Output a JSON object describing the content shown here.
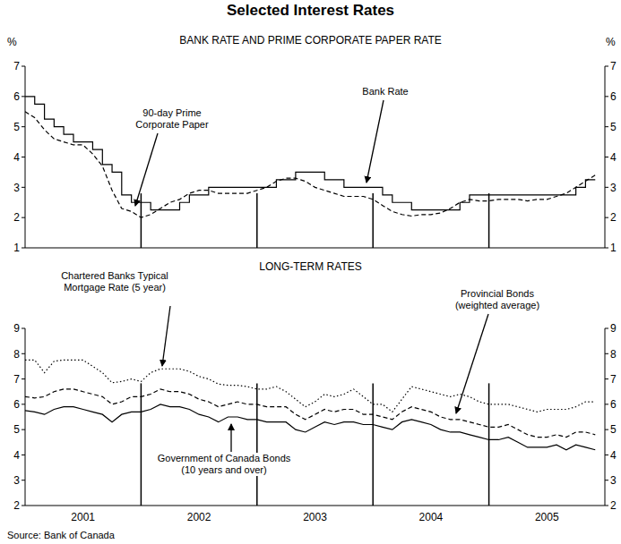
{
  "title": "Selected Interest Rates",
  "source": "Source: Bank of Canada",
  "chart_data": [
    {
      "type": "line",
      "title": "BANK RATE AND PRIME CORPORATE PAPER RATE",
      "ylabel": "%",
      "x": [
        2001,
        2001.083,
        2001.167,
        2001.25,
        2001.333,
        2001.417,
        2001.5,
        2001.583,
        2001.667,
        2001.75,
        2001.833,
        2001.917,
        2002,
        2002.083,
        2002.167,
        2002.25,
        2002.333,
        2002.417,
        2002.5,
        2002.583,
        2002.667,
        2002.75,
        2002.833,
        2002.917,
        2003,
        2003.083,
        2003.167,
        2003.25,
        2003.333,
        2003.417,
        2003.5,
        2003.583,
        2003.667,
        2003.75,
        2003.833,
        2003.917,
        2004,
        2004.083,
        2004.167,
        2004.25,
        2004.333,
        2004.417,
        2004.5,
        2004.583,
        2004.667,
        2004.75,
        2004.833,
        2004.917,
        2005,
        2005.083,
        2005.167,
        2005.25,
        2005.333,
        2005.417,
        2005.5,
        2005.583,
        2005.667,
        2005.75,
        2005.833,
        2005.917
      ],
      "xlim": [
        2001,
        2006
      ],
      "ylim": [
        1,
        7
      ],
      "yticks": [
        1,
        2,
        3,
        4,
        5,
        6,
        7
      ],
      "grid": false,
      "tick_labels": "y",
      "series": [
        {
          "name": "Bank Rate",
          "type": "step",
          "line_style": "solid",
          "color": "#000000",
          "values": [
            6,
            5.75,
            5.25,
            5,
            4.75,
            4.5,
            4.5,
            4.25,
            3.75,
            3.5,
            2.75,
            2.5,
            2.5,
            2.25,
            2.25,
            2.25,
            2.5,
            2.75,
            2.75,
            3,
            3,
            3,
            3,
            3,
            3,
            3,
            3.25,
            3.25,
            3.5,
            3.5,
            3.5,
            3.25,
            3.25,
            3,
            3,
            3,
            3,
            2.75,
            2.5,
            2.5,
            2.25,
            2.25,
            2.25,
            2.25,
            2.25,
            2.5,
            2.75,
            2.75,
            2.75,
            2.75,
            2.75,
            2.75,
            2.75,
            2.75,
            2.75,
            2.75,
            2.75,
            3,
            3.25,
            3.25
          ]
        },
        {
          "name": "90-day Prime Corporate Paper",
          "type": "line",
          "line_style": "dashed",
          "color": "#000000",
          "values": [
            5.5,
            5.3,
            4.9,
            4.6,
            4.5,
            4.4,
            4.4,
            4.1,
            3.7,
            2.9,
            2.3,
            2.2,
            2,
            2.1,
            2.3,
            2.5,
            2.6,
            2.8,
            2.9,
            2.9,
            2.8,
            2.8,
            2.8,
            2.8,
            2.9,
            3,
            3.2,
            3.3,
            3.3,
            3.2,
            3,
            2.9,
            2.8,
            2.7,
            2.7,
            2.7,
            2.6,
            2.4,
            2.2,
            2.1,
            2.05,
            2.1,
            2.1,
            2.15,
            2.3,
            2.5,
            2.6,
            2.55,
            2.55,
            2.6,
            2.6,
            2.6,
            2.55,
            2.6,
            2.6,
            2.7,
            2.8,
            3,
            3.2,
            3.4
          ]
        }
      ]
    },
    {
      "type": "line",
      "title": "LONG-TERM RATES",
      "x": [
        2001,
        2001.083,
        2001.167,
        2001.25,
        2001.333,
        2001.417,
        2001.5,
        2001.583,
        2001.667,
        2001.75,
        2001.833,
        2001.917,
        2002,
        2002.083,
        2002.167,
        2002.25,
        2002.333,
        2002.417,
        2002.5,
        2002.583,
        2002.667,
        2002.75,
        2002.833,
        2002.917,
        2003,
        2003.083,
        2003.167,
        2003.25,
        2003.333,
        2003.417,
        2003.5,
        2003.583,
        2003.667,
        2003.75,
        2003.833,
        2003.917,
        2004,
        2004.083,
        2004.167,
        2004.25,
        2004.333,
        2004.417,
        2004.5,
        2004.583,
        2004.667,
        2004.75,
        2004.833,
        2004.917,
        2005,
        2005.083,
        2005.167,
        2005.25,
        2005.333,
        2005.417,
        2005.5,
        2005.583,
        2005.667,
        2005.75,
        2005.833,
        2005.917
      ],
      "xlim": [
        2001,
        2006
      ],
      "xticks": [
        {
          "value": 2001.5,
          "label": "2001"
        },
        {
          "value": 2002.5,
          "label": "2002"
        },
        {
          "value": 2003.5,
          "label": "2003"
        },
        {
          "value": 2004.5,
          "label": "2004"
        },
        {
          "value": 2005.5,
          "label": "2005"
        }
      ],
      "ylim": [
        2,
        9
      ],
      "yticks": [
        2,
        3,
        4,
        5,
        6,
        7,
        8,
        9
      ],
      "grid": false,
      "tick_labels": true,
      "series": [
        {
          "name": "Chartered Banks Typical Mortgage Rate (5 year)",
          "type": "line",
          "line_style": "dotted",
          "color": "#000000",
          "values": [
            7.75,
            7.75,
            7.25,
            7.7,
            7.75,
            7.75,
            7.75,
            7.5,
            7.25,
            6.85,
            6.9,
            7,
            6.9,
            7.25,
            7.4,
            7.4,
            7.4,
            7.3,
            7.1,
            7,
            6.8,
            6.75,
            6.75,
            6.7,
            6.6,
            6.6,
            6.7,
            6.5,
            6.2,
            5.9,
            6.1,
            6.4,
            6.3,
            6.4,
            6.6,
            6.3,
            6,
            6,
            5.7,
            6.2,
            6.7,
            6.6,
            6.5,
            6.4,
            6.3,
            6.4,
            6.3,
            6.1,
            6,
            6,
            6,
            5.9,
            5.8,
            5.7,
            5.8,
            5.8,
            5.8,
            5.9,
            6.1,
            6.1
          ]
        },
        {
          "name": "Provincial Bonds (weighted average)",
          "type": "line",
          "line_style": "dashed",
          "color": "#000000",
          "values": [
            6.3,
            6.25,
            6.3,
            6.5,
            6.6,
            6.6,
            6.5,
            6.4,
            6.3,
            6,
            6.1,
            6.3,
            6.3,
            6.4,
            6.6,
            6.5,
            6.5,
            6.4,
            6.2,
            6.1,
            5.9,
            6,
            6.1,
            6,
            6,
            5.9,
            5.9,
            5.9,
            5.6,
            5.4,
            5.6,
            5.8,
            5.7,
            5.8,
            5.8,
            5.6,
            5.6,
            5.5,
            5.4,
            5.7,
            5.9,
            5.8,
            5.7,
            5.5,
            5.4,
            5.4,
            5.3,
            5.2,
            5.1,
            5.1,
            5.2,
            5,
            4.8,
            4.7,
            4.7,
            4.8,
            4.7,
            4.9,
            4.9,
            4.8
          ]
        },
        {
          "name": "Government of Canada Bonds (10 years and over)",
          "type": "line",
          "line_style": "solid",
          "color": "#000000",
          "values": [
            5.75,
            5.7,
            5.6,
            5.8,
            5.9,
            5.9,
            5.8,
            5.7,
            5.6,
            5.3,
            5.6,
            5.7,
            5.7,
            5.8,
            6,
            5.9,
            5.9,
            5.8,
            5.6,
            5.5,
            5.3,
            5.5,
            5.5,
            5.4,
            5.4,
            5.3,
            5.3,
            5.3,
            5,
            4.9,
            5.1,
            5.3,
            5.2,
            5.3,
            5.3,
            5.2,
            5.2,
            5.1,
            5,
            5.3,
            5.4,
            5.3,
            5.2,
            5,
            4.9,
            4.9,
            4.8,
            4.7,
            4.6,
            4.6,
            4.7,
            4.5,
            4.3,
            4.3,
            4.3,
            4.4,
            4.2,
            4.4,
            4.3,
            4.2
          ]
        }
      ]
    }
  ]
}
